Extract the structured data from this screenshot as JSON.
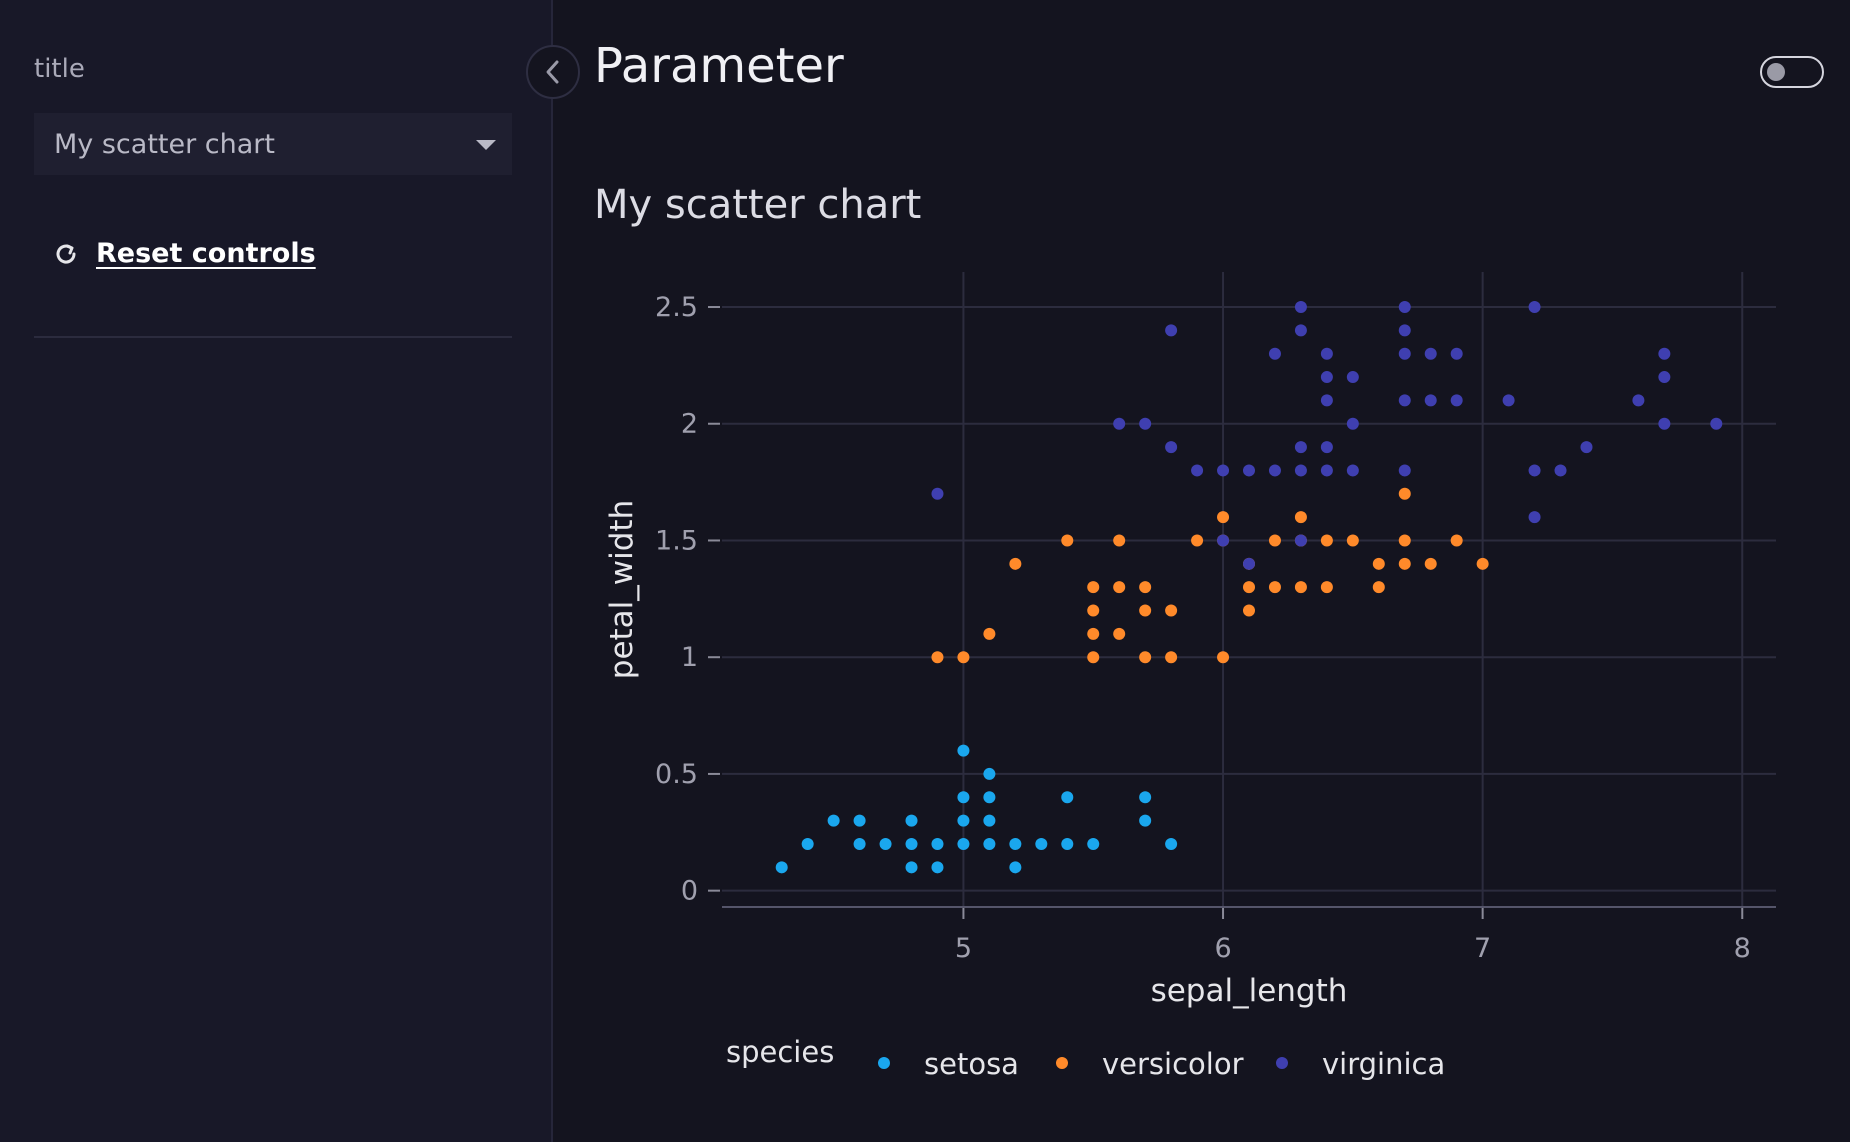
{
  "sidebar": {
    "title_label": "title",
    "dropdown_value": "My scatter chart",
    "reset_label": "Reset controls"
  },
  "header": {
    "title": "Parameter"
  },
  "colors": {
    "setosa": "#1aa7ee",
    "versicolor": "#ff8a2a",
    "virginica": "#3f3fb0"
  },
  "icons": {
    "collapse": "chevron-left-icon",
    "reset": "reset-icon",
    "dropdown": "caret-down-icon"
  },
  "chart_data": {
    "type": "scatter",
    "title": "My scatter chart",
    "xlabel": "sepal_length",
    "ylabel": "petal_width",
    "xlim": [
      4.07,
      8.13
    ],
    "ylim": [
      -0.07,
      2.65
    ],
    "xticks": [
      5,
      6,
      7,
      8
    ],
    "yticks": [
      0,
      0.5,
      1,
      1.5,
      2,
      2.5
    ],
    "grid": true,
    "legend": {
      "title": "species",
      "placement": "bottom"
    },
    "series": [
      {
        "name": "setosa",
        "points": [
          [
            4.3,
            0.1
          ],
          [
            4.4,
            0.2
          ],
          [
            4.5,
            0.3
          ],
          [
            4.6,
            0.2
          ],
          [
            4.6,
            0.3
          ],
          [
            4.7,
            0.2
          ],
          [
            4.8,
            0.1
          ],
          [
            4.8,
            0.2
          ],
          [
            4.8,
            0.3
          ],
          [
            4.9,
            0.1
          ],
          [
            4.9,
            0.2
          ],
          [
            5.0,
            0.2
          ],
          [
            5.0,
            0.3
          ],
          [
            5.0,
            0.4
          ],
          [
            5.0,
            0.6
          ],
          [
            5.1,
            0.2
          ],
          [
            5.1,
            0.3
          ],
          [
            5.1,
            0.4
          ],
          [
            5.1,
            0.5
          ],
          [
            5.2,
            0.1
          ],
          [
            5.2,
            0.2
          ],
          [
            5.3,
            0.2
          ],
          [
            5.4,
            0.2
          ],
          [
            5.4,
            0.4
          ],
          [
            5.5,
            0.2
          ],
          [
            5.7,
            0.3
          ],
          [
            5.7,
            0.4
          ],
          [
            5.8,
            0.2
          ]
        ]
      },
      {
        "name": "versicolor",
        "points": [
          [
            4.9,
            1.0
          ],
          [
            5.0,
            1.0
          ],
          [
            5.1,
            1.1
          ],
          [
            5.2,
            1.4
          ],
          [
            5.4,
            1.5
          ],
          [
            5.5,
            1.0
          ],
          [
            5.5,
            1.1
          ],
          [
            5.5,
            1.2
          ],
          [
            5.5,
            1.3
          ],
          [
            5.6,
            1.1
          ],
          [
            5.6,
            1.3
          ],
          [
            5.6,
            1.5
          ],
          [
            5.7,
            1.0
          ],
          [
            5.7,
            1.2
          ],
          [
            5.7,
            1.3
          ],
          [
            5.8,
            1.0
          ],
          [
            5.8,
            1.2
          ],
          [
            5.9,
            1.5
          ],
          [
            6.0,
            1.0
          ],
          [
            6.0,
            1.5
          ],
          [
            6.0,
            1.6
          ],
          [
            6.1,
            1.2
          ],
          [
            6.1,
            1.3
          ],
          [
            6.1,
            1.4
          ],
          [
            6.2,
            1.3
          ],
          [
            6.2,
            1.5
          ],
          [
            6.3,
            1.3
          ],
          [
            6.3,
            1.5
          ],
          [
            6.3,
            1.6
          ],
          [
            6.4,
            1.3
          ],
          [
            6.4,
            1.5
          ],
          [
            6.5,
            1.5
          ],
          [
            6.6,
            1.3
          ],
          [
            6.6,
            1.4
          ],
          [
            6.7,
            1.4
          ],
          [
            6.7,
            1.5
          ],
          [
            6.7,
            1.7
          ],
          [
            6.8,
            1.4
          ],
          [
            6.9,
            1.5
          ],
          [
            7.0,
            1.4
          ]
        ]
      },
      {
        "name": "virginica",
        "points": [
          [
            4.9,
            1.7
          ],
          [
            5.6,
            2.0
          ],
          [
            5.7,
            2.0
          ],
          [
            5.8,
            1.9
          ],
          [
            5.8,
            2.4
          ],
          [
            5.9,
            1.8
          ],
          [
            6.0,
            1.5
          ],
          [
            6.0,
            1.8
          ],
          [
            6.1,
            1.4
          ],
          [
            6.1,
            1.8
          ],
          [
            6.2,
            1.8
          ],
          [
            6.2,
            2.3
          ],
          [
            6.3,
            1.5
          ],
          [
            6.3,
            1.8
          ],
          [
            6.3,
            1.9
          ],
          [
            6.3,
            2.4
          ],
          [
            6.3,
            2.5
          ],
          [
            6.4,
            1.8
          ],
          [
            6.4,
            1.9
          ],
          [
            6.4,
            2.1
          ],
          [
            6.4,
            2.2
          ],
          [
            6.4,
            2.3
          ],
          [
            6.5,
            1.8
          ],
          [
            6.5,
            2.0
          ],
          [
            6.5,
            2.2
          ],
          [
            6.7,
            1.8
          ],
          [
            6.7,
            2.1
          ],
          [
            6.7,
            2.3
          ],
          [
            6.7,
            2.4
          ],
          [
            6.7,
            2.5
          ],
          [
            6.8,
            2.1
          ],
          [
            6.8,
            2.3
          ],
          [
            6.9,
            2.1
          ],
          [
            6.9,
            2.3
          ],
          [
            7.1,
            2.1
          ],
          [
            7.2,
            1.6
          ],
          [
            7.2,
            1.8
          ],
          [
            7.2,
            2.5
          ],
          [
            7.3,
            1.8
          ],
          [
            7.4,
            1.9
          ],
          [
            7.6,
            2.1
          ],
          [
            7.7,
            2.0
          ],
          [
            7.7,
            2.2
          ],
          [
            7.7,
            2.3
          ],
          [
            7.9,
            2.0
          ]
        ]
      }
    ]
  }
}
